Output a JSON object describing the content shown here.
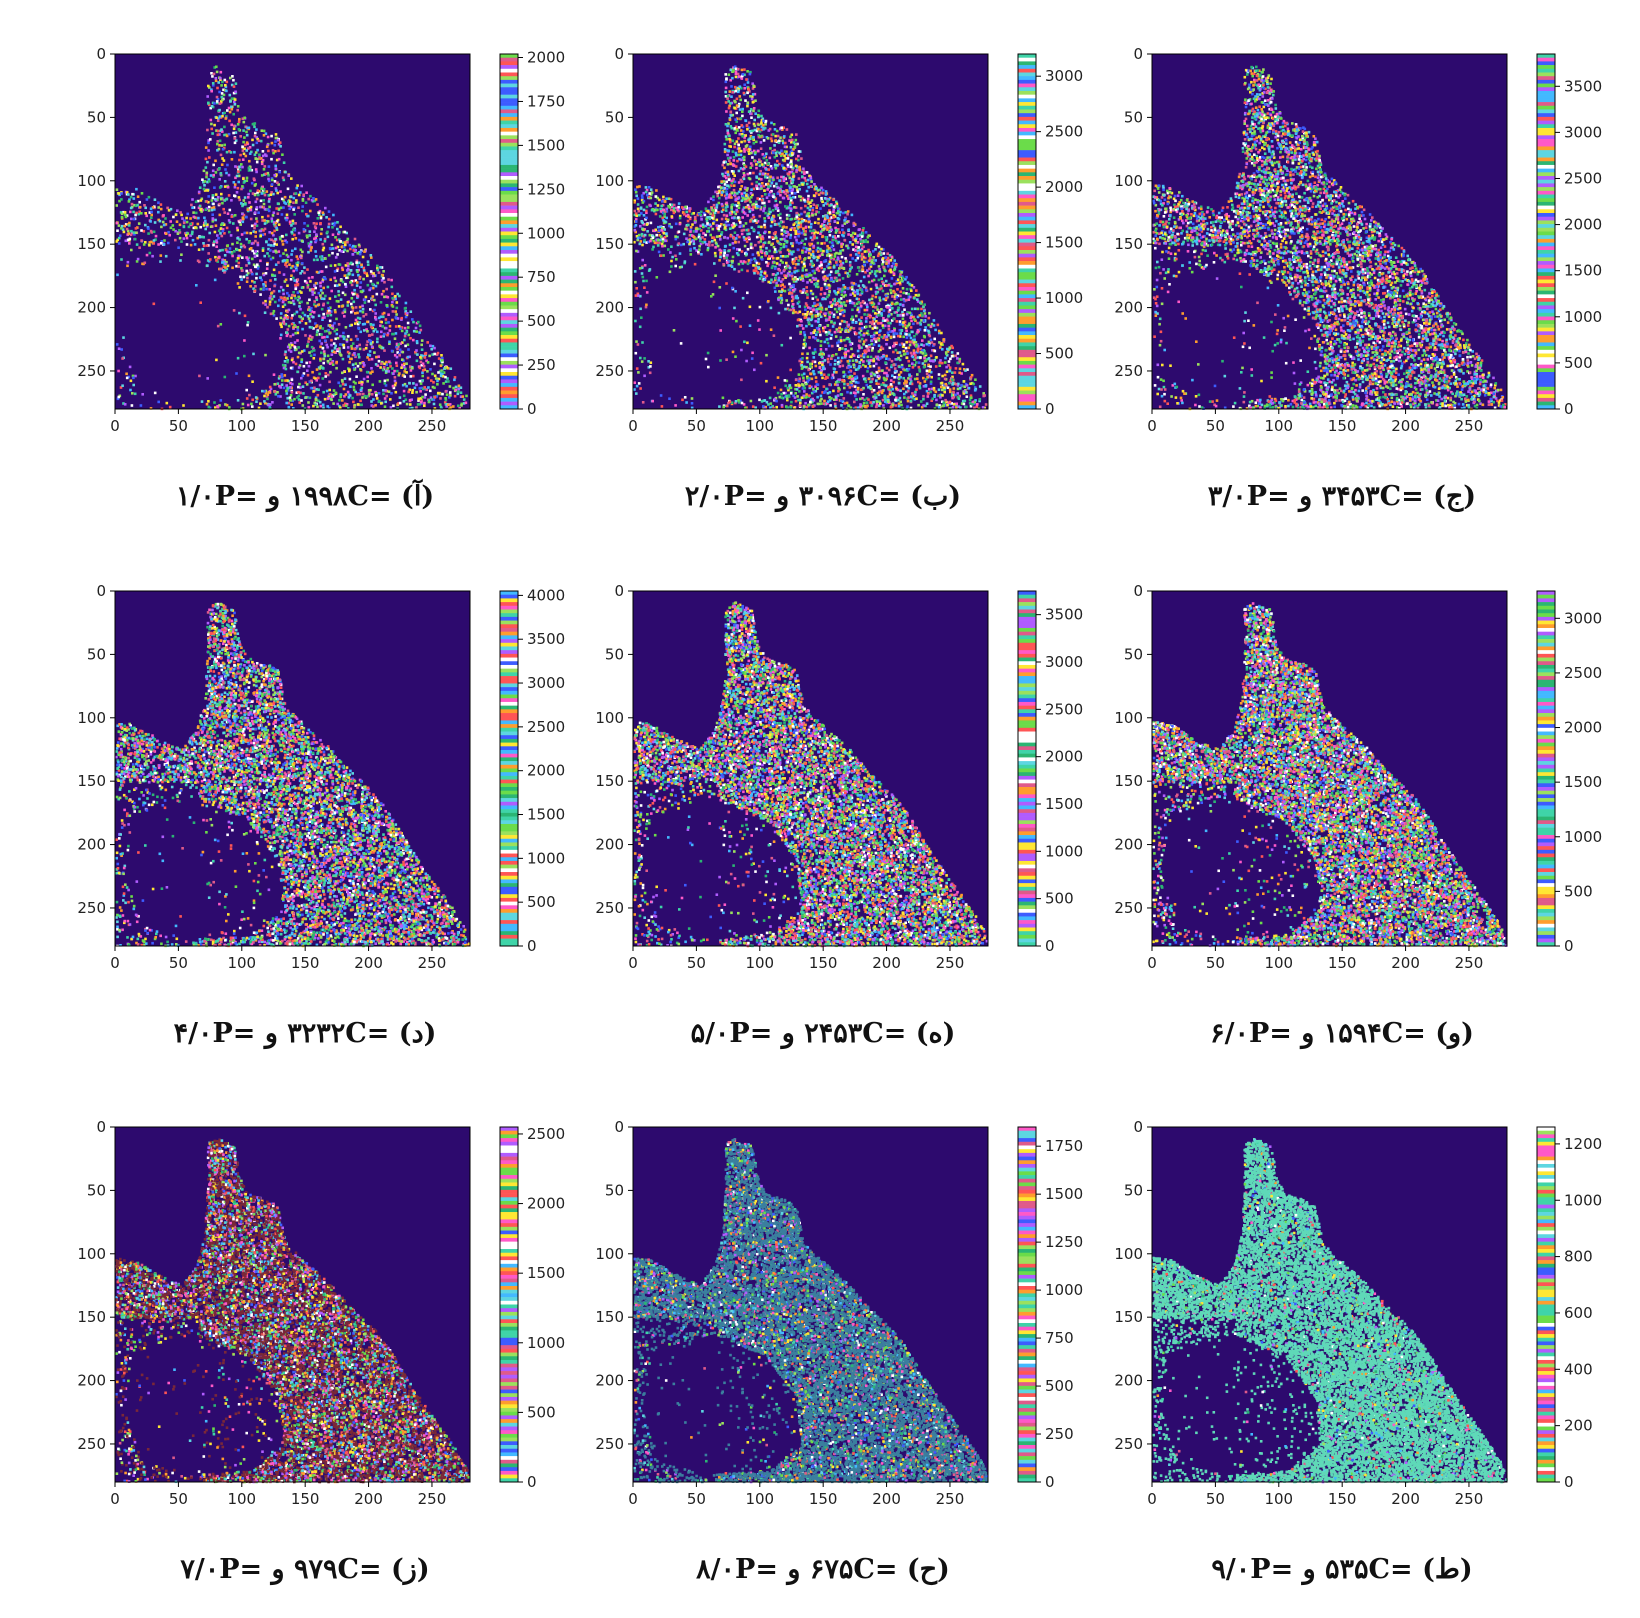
{
  "chart_data": [
    {
      "type": "heatmap",
      "caption": "(آ) =۱۹۹۸C و =۱/۰P",
      "xticks": [
        0,
        50,
        100,
        150,
        200,
        250
      ],
      "yticks": [
        0,
        50,
        100,
        150,
        200,
        250
      ],
      "cbar_ticks": [
        0,
        250,
        500,
        750,
        1000,
        1250,
        1500,
        1750,
        2000
      ],
      "cbar_max": 2020,
      "density": 0.22,
      "fill_tint": null
    },
    {
      "type": "heatmap",
      "caption": "(ب) =۳۰۹۶C و =۲/۰P",
      "xticks": [
        0,
        50,
        100,
        150,
        200,
        250
      ],
      "yticks": [
        0,
        50,
        100,
        150,
        200,
        250
      ],
      "cbar_ticks": [
        0,
        500,
        1000,
        1500,
        2000,
        2500,
        3000
      ],
      "cbar_max": 3200,
      "density": 0.34,
      "fill_tint": null
    },
    {
      "type": "heatmap",
      "caption": "(ج) =۳۴۵۳C و =۳/۰P",
      "xticks": [
        0,
        50,
        100,
        150,
        200,
        250
      ],
      "yticks": [
        0,
        50,
        100,
        150,
        200,
        250
      ],
      "cbar_ticks": [
        0,
        500,
        1000,
        1500,
        2000,
        2500,
        3000,
        3500
      ],
      "cbar_max": 3850,
      "density": 0.45,
      "fill_tint": null
    },
    {
      "type": "heatmap",
      "caption": "(د) =۳۲۳۲C و =۴/۰P",
      "xticks": [
        0,
        50,
        100,
        150,
        200,
        250
      ],
      "yticks": [
        0,
        50,
        100,
        150,
        200,
        250
      ],
      "cbar_ticks": [
        0,
        500,
        1000,
        1500,
        2000,
        2500,
        3000,
        3500,
        4000
      ],
      "cbar_max": 4050,
      "density": 0.58,
      "fill_tint": null
    },
    {
      "type": "heatmap",
      "caption": "(ه) =۲۴۵۳C و =۵/۰P",
      "xticks": [
        0,
        50,
        100,
        150,
        200,
        250
      ],
      "yticks": [
        0,
        50,
        100,
        150,
        200,
        250
      ],
      "cbar_ticks": [
        0,
        500,
        1000,
        1500,
        2000,
        2500,
        3000,
        3500
      ],
      "cbar_max": 3750,
      "density": 0.68,
      "fill_tint": null
    },
    {
      "type": "heatmap",
      "caption": "(و) =۱۵۹۴C و =۶/۰P",
      "xticks": [
        0,
        50,
        100,
        150,
        200,
        250
      ],
      "yticks": [
        0,
        50,
        100,
        150,
        200,
        250
      ],
      "cbar_ticks": [
        0,
        500,
        1000,
        1500,
        2000,
        2500,
        3000
      ],
      "cbar_max": 3250,
      "density": 0.78,
      "fill_tint": null
    },
    {
      "type": "heatmap",
      "caption": "(ز) =۹۷۹C و =۷/۰P",
      "xticks": [
        0,
        50,
        100,
        150,
        200,
        250
      ],
      "yticks": [
        0,
        50,
        100,
        150,
        200,
        250
      ],
      "cbar_ticks": [
        0,
        500,
        1000,
        1500,
        2000,
        2500
      ],
      "cbar_max": 2550,
      "density": 0.88,
      "fill_tint": "#7a2838"
    },
    {
      "type": "heatmap",
      "caption": "(ح) =۶۷۵C و =۸/۰P",
      "xticks": [
        0,
        50,
        100,
        150,
        200,
        250
      ],
      "yticks": [
        0,
        50,
        100,
        150,
        200,
        250
      ],
      "cbar_ticks": [
        0,
        250,
        500,
        750,
        1000,
        1250,
        1500,
        1750
      ],
      "cbar_max": 1850,
      "density": 0.95,
      "fill_tint": "#3b7f9e"
    },
    {
      "type": "heatmap",
      "caption": "(ط) =۵۳۵C و =۹/۰P",
      "xticks": [
        0,
        50,
        100,
        150,
        200,
        250
      ],
      "yticks": [
        0,
        50,
        100,
        150,
        200,
        250
      ],
      "cbar_ticks": [
        0,
        200,
        400,
        600,
        800,
        1000,
        1200
      ],
      "cbar_max": 1260,
      "density": 1.0,
      "fill_tint": "#5fd9b8"
    }
  ],
  "colors": {
    "background": "#2d0a6e",
    "axis": "#000000",
    "palette": [
      "#ff5555",
      "#ff9d2e",
      "#ffe733",
      "#6bdc4a",
      "#3fd4a8",
      "#43b9ff",
      "#3d5cff",
      "#b05cff",
      "#ff59c8",
      "#ffffff",
      "#2bb673",
      "#e05a8a",
      "#9be15d",
      "#5dd6e1"
    ]
  }
}
